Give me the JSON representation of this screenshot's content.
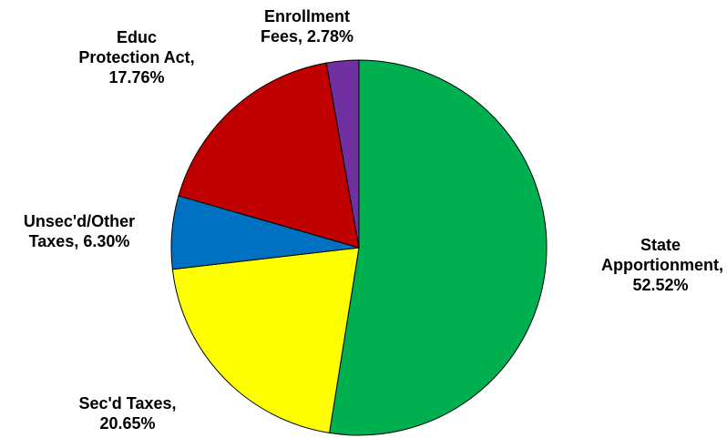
{
  "chart_data": {
    "type": "pie",
    "title": "",
    "slices": [
      {
        "lines": [
          "State",
          "Apportionment,",
          "52.52%"
        ],
        "value": 52.52,
        "color": "#00b050"
      },
      {
        "lines": [
          "Sec'd Taxes,",
          "20.65%"
        ],
        "value": 20.65,
        "color": "#ffff00"
      },
      {
        "lines": [
          "Unsec'd/Other",
          "Taxes, 6.30%"
        ],
        "value": 6.3,
        "color": "#0070c0"
      },
      {
        "lines": [
          "Educ",
          "Protection Act,",
          "17.76%"
        ],
        "value": 17.76,
        "color": "#c00000"
      },
      {
        "lines": [
          "Enrollment",
          "Fees, 2.78%"
        ],
        "value": 2.78,
        "color": "#7030a0"
      }
    ],
    "start_angle": "12 o'clock",
    "direction": "clockwise",
    "legend": "none"
  }
}
